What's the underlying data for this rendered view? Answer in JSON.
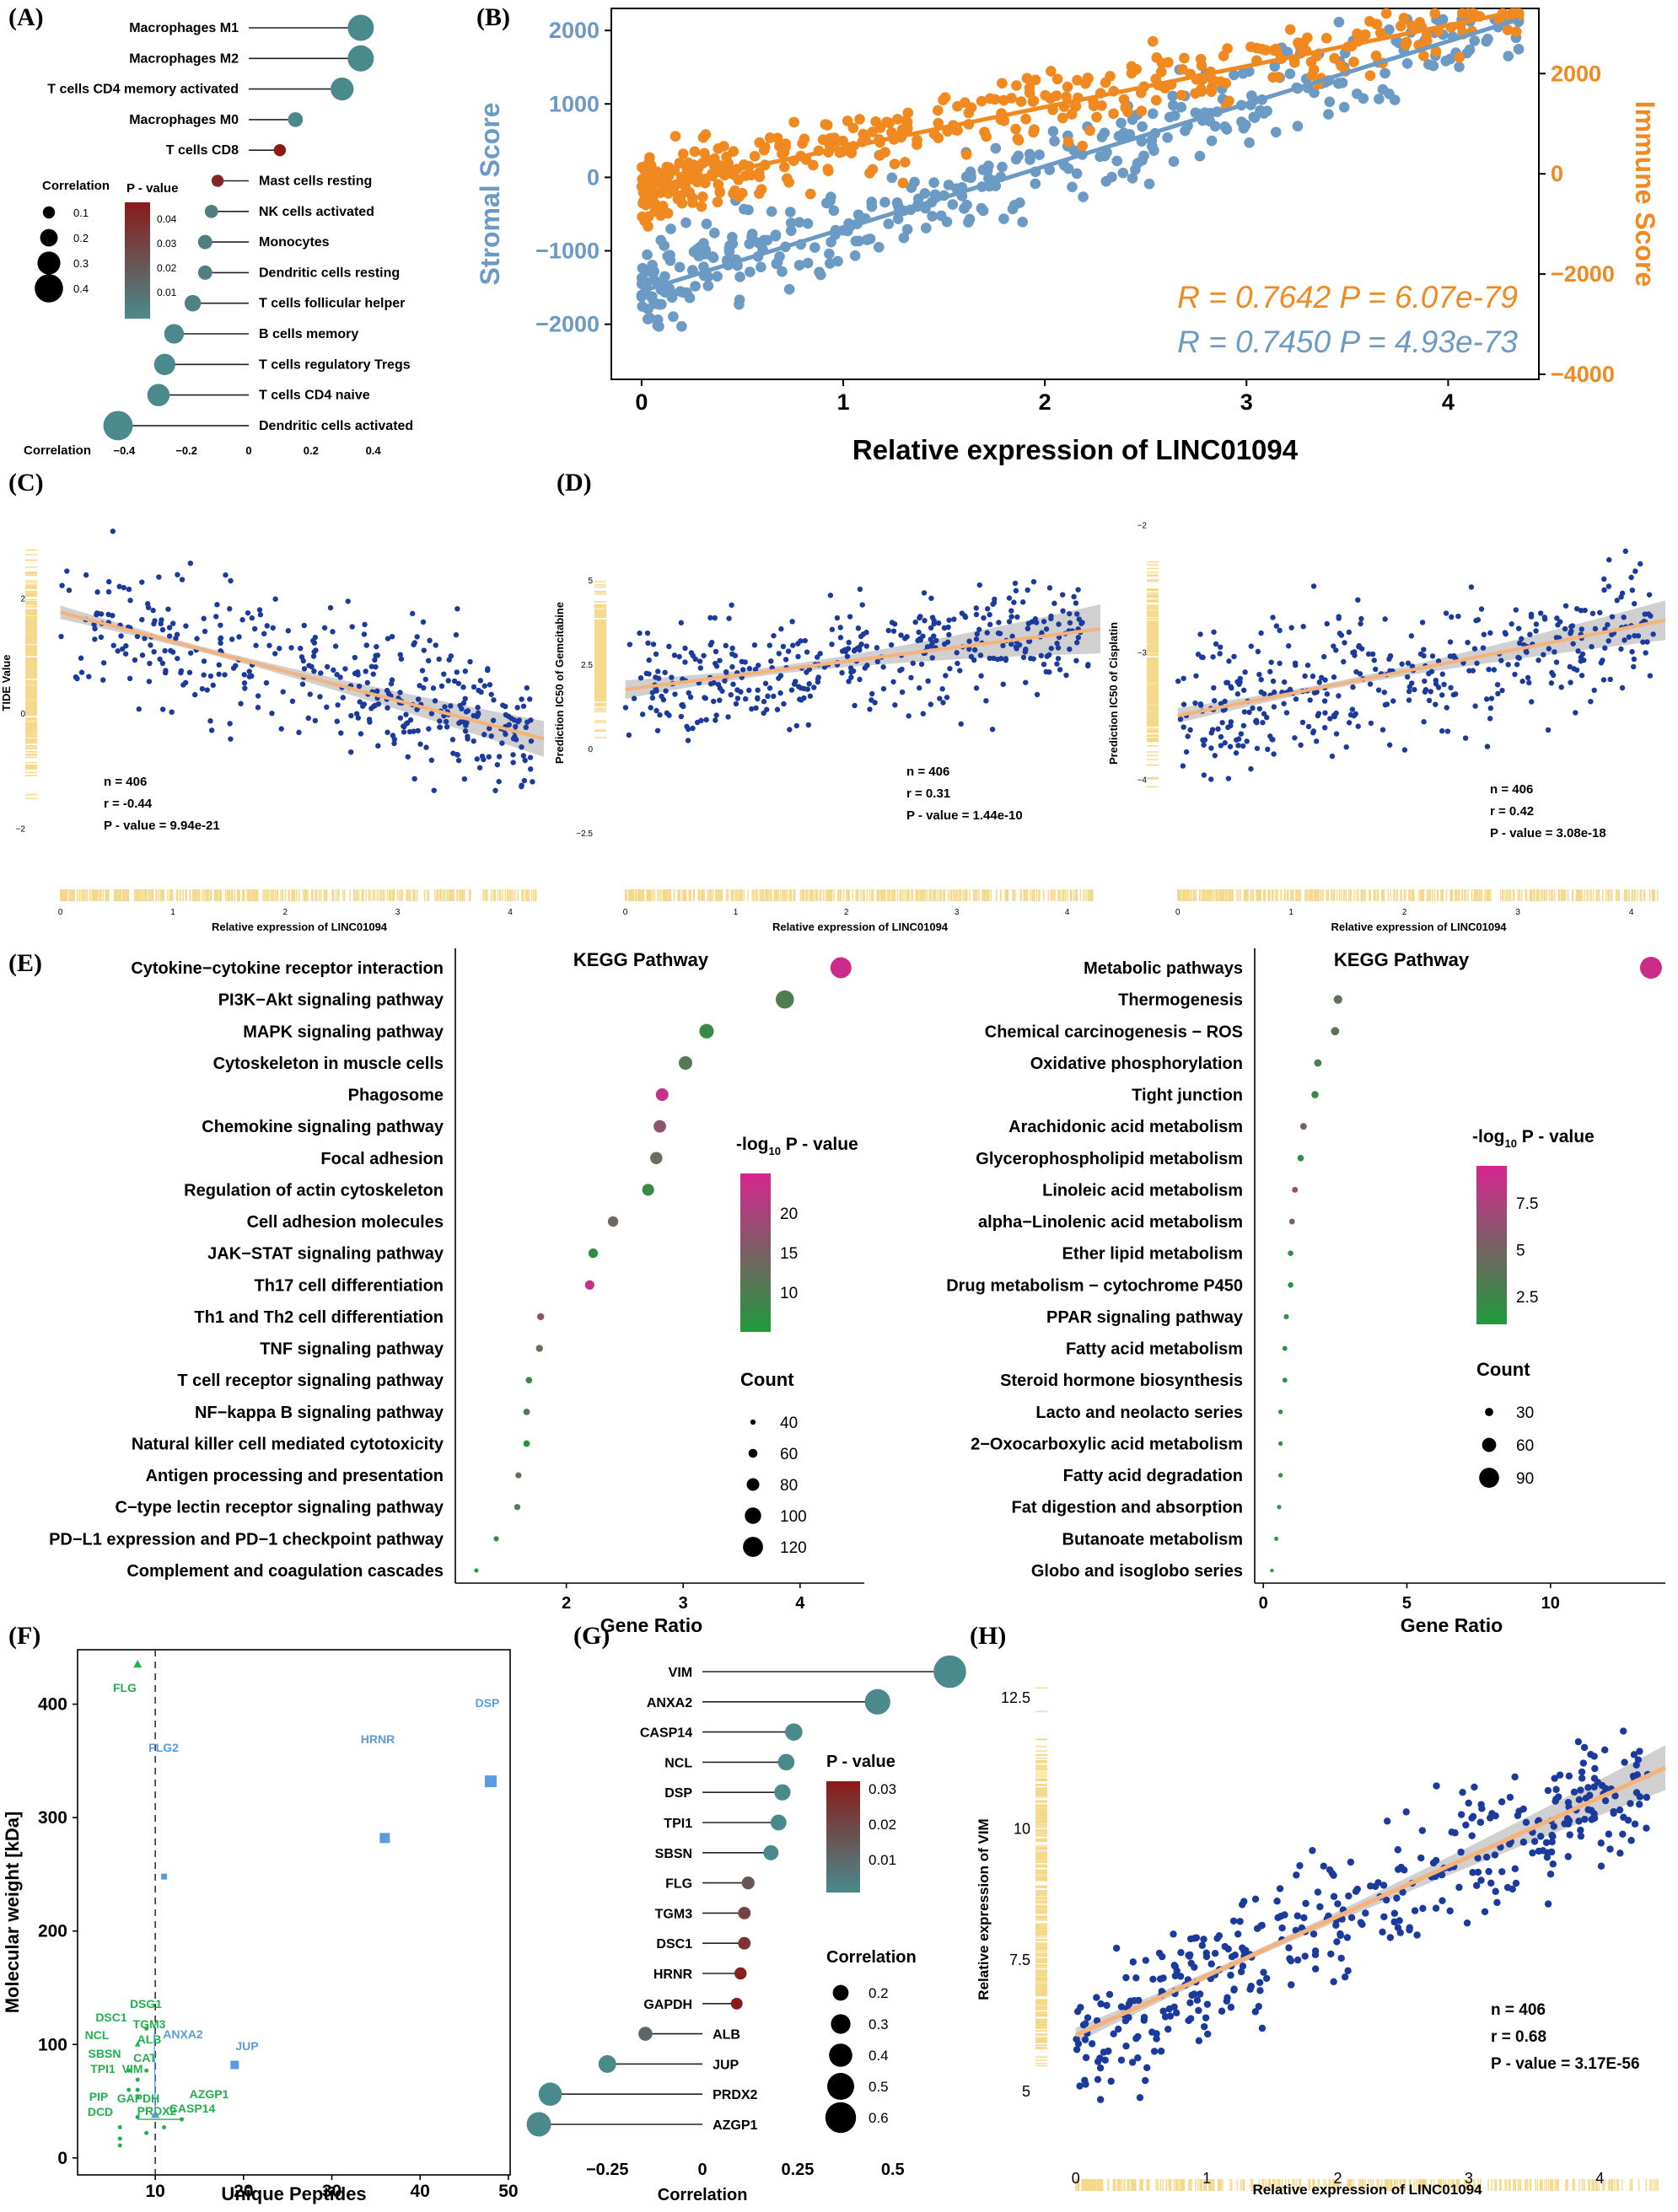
{
  "panels": {
    "A": {
      "label": "(A)",
      "chart_data": {
        "type": "lollipop",
        "xlabel": "Correlation",
        "xticks": [
          -0.4,
          -0.2,
          0.0,
          0.2,
          0.4
        ],
        "xlim": [
          -0.42,
          0.42
        ],
        "categories": [
          "Macrophages M1",
          "Macrophages M2",
          "T cells CD4 memory activated",
          "Macrophages M0",
          "T cells CD8",
          "Mast cells resting",
          "NK cells activated",
          "Monocytes",
          "Dendritic cells resting",
          "T cells follicular helper",
          "B cells memory",
          "T cells regulatory Tregs",
          "T cells CD4 naive",
          "Dendritic cells activated"
        ],
        "values": [
          0.36,
          0.36,
          0.3,
          0.15,
          0.1,
          -0.1,
          -0.12,
          -0.14,
          -0.14,
          -0.18,
          -0.24,
          -0.27,
          -0.29,
          -0.42
        ],
        "pvalues": [
          0.0,
          0.0,
          0.0,
          0.001,
          0.045,
          0.04,
          0.005,
          0.005,
          0.005,
          0.003,
          0.0,
          0.0,
          0.0,
          0.0
        ],
        "legend_size": {
          "title": "Correlation",
          "values": [
            0.1,
            0.2,
            0.3,
            0.4
          ]
        },
        "legend_color": {
          "title": "P - value",
          "ticks": [
            0.04,
            0.03,
            0.02,
            0.01
          ]
        }
      }
    },
    "B": {
      "label": "(B)",
      "chart_data": {
        "type": "scatter",
        "xlabel": "Relative expression of LINC01094",
        "ylabel_left": "Stromal Score",
        "ylabel_right": "Immune Score",
        "xticks": [
          0,
          1,
          2,
          3,
          4
        ],
        "yticks_left": [
          -2000,
          -1000,
          0,
          1000,
          2000
        ],
        "yticks_right": [
          -4000,
          -2000,
          0,
          2000
        ],
        "xlim": [
          -0.15,
          4.45
        ],
        "ylim_left": [
          -2750,
          2300
        ],
        "ylim_right": [
          -4100,
          3300
        ],
        "series": [
          {
            "name": "Stromal Score",
            "color": "#6b9ac4",
            "fit": {
              "x0": 0,
              "y0": -1550,
              "x1": 4.35,
              "y1": 2150
            },
            "stat": "R = 0.7450 P = 4.93e-73"
          },
          {
            "name": "Immune Score",
            "color": "#f0891f",
            "fit": {
              "x0": 0,
              "y0": -300,
              "x1": 4.35,
              "y1": 3250
            },
            "stat": "R = 0.7642 P = 6.07e-79"
          }
        ]
      }
    },
    "C": {
      "label": "(C)",
      "chart_data": {
        "type": "scatter",
        "xlabel": "Relative expression of LINC01094",
        "ylabel": "TIDE Value",
        "xticks": [
          0,
          1,
          2,
          3,
          4
        ],
        "yticks": [
          -2,
          0,
          2
        ],
        "xlim": [
          -0.05,
          4.3
        ],
        "ylim": [
          -2.55,
          3.6
        ],
        "fit": {
          "x0": 0,
          "y0": 1.75,
          "x1": 4.3,
          "y1": -0.45
        },
        "stats": {
          "n": "n = 406",
          "r": "r = -0.44",
          "p": "P - value = 9.94e-21"
        }
      }
    },
    "D1": {
      "label": "(D)",
      "chart_data": {
        "type": "scatter",
        "xlabel": "Relative expression of LINC01094",
        "ylabel": "Prediction IC50 of Gemcitabine",
        "xticks": [
          0,
          1,
          2,
          3,
          4
        ],
        "yticks": [
          -2.5,
          0.0,
          2.5,
          5.0
        ],
        "xlim": [
          -0.05,
          4.3
        ],
        "ylim": [
          -3.3,
          7.2
        ],
        "fit": {
          "x0": 0,
          "y0": 1.75,
          "x1": 4.3,
          "y1": 3.55
        },
        "stats": {
          "n": "n = 406",
          "r": "r = 0.31",
          "p": "P - value = 1.44e-10"
        }
      }
    },
    "D2": {
      "chart_data": {
        "type": "scatter",
        "xlabel": "Relative expression of LINC01094",
        "ylabel": "Prediction IC50 of Cisplatin",
        "xticks": [
          0,
          1,
          2,
          3,
          4
        ],
        "yticks": [
          -4,
          -3,
          -2
        ],
        "xlim": [
          -0.05,
          4.3
        ],
        "ylim": [
          -4.8,
          -1.85
        ],
        "fit": {
          "x0": 0,
          "y0": -3.5,
          "x1": 4.3,
          "y1": -2.75
        },
        "stats": {
          "n": "n = 406",
          "r": "r = 0.42",
          "p": "P - value = 3.08e-18"
        }
      }
    },
    "E1": {
      "label": "(E)",
      "chart_data": {
        "type": "dot",
        "title": "KEGG Pathway",
        "xlabel": "Gene Ratio",
        "xticks": [
          2,
          3,
          4
        ],
        "xlim": [
          1.05,
          4.55
        ],
        "categories": [
          "Cytokine−cytokine receptor interaction",
          "PI3K−Akt signaling pathway",
          "MAPK signaling pathway",
          "Cytoskeleton in muscle cells",
          "Phagosome",
          "Chemokine signaling pathway",
          "Focal adhesion",
          "Regulation of actin cytoskeleton",
          "Cell adhesion molecules",
          "JAK−STAT signaling pathway",
          "Th17 cell differentiation",
          "Th1 and Th2 cell differentiation",
          "TNF signaling pathway",
          "T cell receptor signaling pathway",
          "NF−kappa B signaling pathway",
          "Natural killer cell mediated cytotoxicity",
          "Antigen processing and presentation",
          "C−type lectin receptor signaling pathway",
          "PD−L1 expression and PD−1 checkpoint pathway",
          "Complement and coagulation cascades"
        ],
        "gene_ratio": [
          4.35,
          3.87,
          3.2,
          3.02,
          2.82,
          2.8,
          2.77,
          2.7,
          2.4,
          2.23,
          2.2,
          1.78,
          1.77,
          1.68,
          1.66,
          1.66,
          1.59,
          1.58,
          1.4,
          1.23
        ],
        "count": [
          125,
          110,
          90,
          85,
          80,
          79,
          78,
          76,
          68,
          63,
          62,
          50,
          50,
          47,
          47,
          47,
          45,
          45,
          40,
          35
        ],
        "neg_log10_p": [
          24,
          10,
          8,
          11,
          23,
          17,
          13,
          8,
          14,
          7,
          23,
          17,
          13,
          8,
          11,
          4,
          12,
          10,
          8,
          4
        ],
        "legend_color": {
          "title": "-log",
          "sub": "10",
          "title_after": " P - value",
          "ticks": [
            20,
            15,
            10
          ],
          "range": [
            5,
            25
          ]
        },
        "legend_size": {
          "title": "Count",
          "values": [
            40,
            60,
            80,
            100,
            120
          ]
        }
      }
    },
    "E2": {
      "chart_data": {
        "type": "dot",
        "title": "KEGG Pathway",
        "xlabel": "Gene Ratio",
        "xticks": [
          0,
          5,
          10
        ],
        "xlim": [
          -0.3,
          14.0
        ],
        "categories": [
          "Metabolic pathways",
          "Thermogenesis",
          "Chemical carcinogenesis − ROS",
          "Oxidative phosphorylation",
          "Tight junction",
          "Arachidonic acid metabolism",
          "Glycerophospholipid metabolism",
          "Linoleic acid metabolism",
          "alpha−Linolenic acid metabolism",
          "Ether lipid metabolism",
          "Drug metabolism − cytochrome P450",
          "PPAR signaling pathway",
          "Fatty acid metabolism",
          "Steroid hormone biosynthesis",
          "Lacto and neolacto series",
          "2−Oxocarboxylic acid metabolism",
          "Fatty acid degradation",
          "Fat digestion and absorption",
          "Butanoate metabolism",
          "Globo and isoglobo series"
        ],
        "gene_ratio": [
          13.5,
          2.6,
          2.5,
          1.9,
          1.8,
          1.4,
          1.3,
          1.1,
          1.0,
          0.95,
          0.95,
          0.8,
          0.75,
          0.75,
          0.6,
          0.6,
          0.6,
          0.55,
          0.45,
          0.3
        ],
        "count": [
          100,
          32,
          30,
          26,
          25,
          22,
          21,
          18,
          17,
          16,
          16,
          14,
          13,
          13,
          11,
          11,
          11,
          10,
          9,
          6
        ],
        "neg_log10_p": [
          9,
          4,
          4,
          3,
          2.5,
          5,
          2,
          7,
          5,
          2.5,
          1.5,
          2,
          1.5,
          1.5,
          1.5,
          1.5,
          1.5,
          1.5,
          1,
          1
        ],
        "legend_color": {
          "title": "-log",
          "sub": "10",
          "title_after": " P - value",
          "ticks": [
            7.5,
            5.0,
            2.5
          ],
          "range": [
            1,
            9.5
          ]
        },
        "legend_size": {
          "title": "Count",
          "values": [
            30,
            60,
            90
          ]
        }
      }
    },
    "F": {
      "label": "(F)",
      "chart_data": {
        "type": "scatter",
        "xlabel": "Unique Peptides",
        "ylabel": "Molecular weight [kDa]",
        "xticks": [
          10,
          20,
          30,
          40,
          50
        ],
        "yticks": [
          0,
          100,
          200,
          300,
          400
        ],
        "xlim": [
          1.2,
          50.2
        ],
        "ylim": [
          -15,
          448
        ],
        "vline": 10,
        "points": [
          {
            "label": "FLG",
            "x": 8,
            "y": 435,
            "color": "#22b14c",
            "shape": "triangle",
            "size": 9
          },
          {
            "label": "DSP",
            "x": 48,
            "y": 332,
            "color": "#5b9bdf",
            "shape": "square",
            "size": 14
          },
          {
            "label": "HRNR",
            "x": 36,
            "y": 282,
            "color": "#5b9bdf",
            "shape": "square",
            "size": 12
          },
          {
            "label": "FLG2",
            "x": 11,
            "y": 248,
            "color": "#5b9bdf",
            "shape": "square",
            "size": 7
          },
          {
            "label": "JUP",
            "x": 19,
            "y": 82,
            "color": "#5b9bdf",
            "shape": "square",
            "size": 10
          },
          {
            "label": "ANXA2",
            "x": 10,
            "y": 38,
            "color": "#5b9bdf",
            "shape": "triangle",
            "size": 9
          },
          {
            "label": "DSG1",
            "x": 9,
            "y": 114,
            "color": "#22b14c",
            "shape": "dot",
            "size": 5
          },
          {
            "label": "DSC1",
            "x": 8,
            "y": 100,
            "color": "#22b14c",
            "shape": "triangle",
            "size": 6
          },
          {
            "label": "TGM3",
            "x": 9,
            "y": 77,
            "color": "#22b14c",
            "shape": "dot",
            "size": 5
          },
          {
            "label": "NCL",
            "x": 7,
            "y": 77,
            "color": "#22b14c",
            "shape": "dot",
            "size": 5
          },
          {
            "label": "ALB",
            "x": 8,
            "y": 69,
            "color": "#22b14c",
            "shape": "dot",
            "size": 5
          },
          {
            "label": "SBSN",
            "x": 7,
            "y": 60,
            "color": "#22b14c",
            "shape": "dot",
            "size": 5
          },
          {
            "label": "CAT",
            "x": 8,
            "y": 60,
            "color": "#22b14c",
            "shape": "dot",
            "size": 5
          },
          {
            "label": "TPI1",
            "x": 6,
            "y": 27,
            "color": "#22b14c",
            "shape": "dot",
            "size": 5
          },
          {
            "label": "VIM",
            "x": 8,
            "y": 54,
            "color": "#22b14c",
            "shape": "dot",
            "size": 5
          },
          {
            "label": "AZGP1",
            "x": 13,
            "y": 34,
            "color": "#22b14c",
            "shape": "dot",
            "size": 5
          },
          {
            "label": "PIP",
            "x": 6,
            "y": 17,
            "color": "#22b14c",
            "shape": "dot",
            "size": 5
          },
          {
            "label": "GAPDH",
            "x": 8,
            "y": 36,
            "color": "#22b14c",
            "shape": "dot",
            "size": 5
          },
          {
            "label": "PRDX2",
            "x": 9,
            "y": 22,
            "color": "#22b14c",
            "shape": "dot",
            "size": 5
          },
          {
            "label": "CASP14",
            "x": 11,
            "y": 27,
            "color": "#22b14c",
            "shape": "dot",
            "size": 5
          },
          {
            "label": "DCD",
            "x": 6,
            "y": 11,
            "color": "#22b14c",
            "shape": "dot",
            "size": 5
          }
        ]
      }
    },
    "G": {
      "label": "(G)",
      "chart_data": {
        "type": "lollipop",
        "xlabel": "Correlation",
        "xticks": [
          -0.25,
          0.0,
          0.25,
          0.5
        ],
        "xlim": [
          -0.45,
          0.68
        ],
        "categories": [
          "VIM",
          "ANXA2",
          "CASP14",
          "NCL",
          "DSP",
          "TPI1",
          "SBSN",
          "FLG",
          "TGM3",
          "DSC1",
          "HRNR",
          "GAPDH",
          "ALB",
          "JUP",
          "PRDX2",
          "AZGP1"
        ],
        "values": [
          0.65,
          0.46,
          0.24,
          0.22,
          0.21,
          0.2,
          0.18,
          0.12,
          0.11,
          0.11,
          0.1,
          0.09,
          -0.15,
          -0.25,
          -0.4,
          -0.43
        ],
        "pvalues": [
          0.0,
          0.0,
          0.0,
          0.0,
          0.0,
          0.0,
          0.0,
          0.015,
          0.02,
          0.025,
          0.03,
          0.032,
          0.01,
          0.0,
          0.0,
          0.0
        ],
        "legend_size": {
          "title": "Correlation",
          "values": [
            0.2,
            0.3,
            0.4,
            0.5,
            0.6
          ]
        },
        "legend_color": {
          "title": "P - value",
          "ticks": [
            0.03,
            0.02,
            0.01
          ]
        }
      }
    },
    "H": {
      "label": "(H)",
      "chart_data": {
        "type": "scatter",
        "xlabel": "Relative expression of LINC01094",
        "ylabel": "Relative expression of VIM",
        "xticks": [
          0,
          1,
          2,
          3,
          4
        ],
        "yticks": [
          5.0,
          7.5,
          10.0,
          12.5
        ],
        "xlim": [
          -0.05,
          4.5
        ],
        "ylim": [
          3.6,
          13.4
        ],
        "fit": {
          "x0": 0,
          "y0": 6.1,
          "x1": 4.5,
          "y1": 11.2
        },
        "stats": {
          "n": "n = 406",
          "r": "r = 0.68",
          "p": "P - value = 3.17E-56"
        }
      }
    }
  }
}
